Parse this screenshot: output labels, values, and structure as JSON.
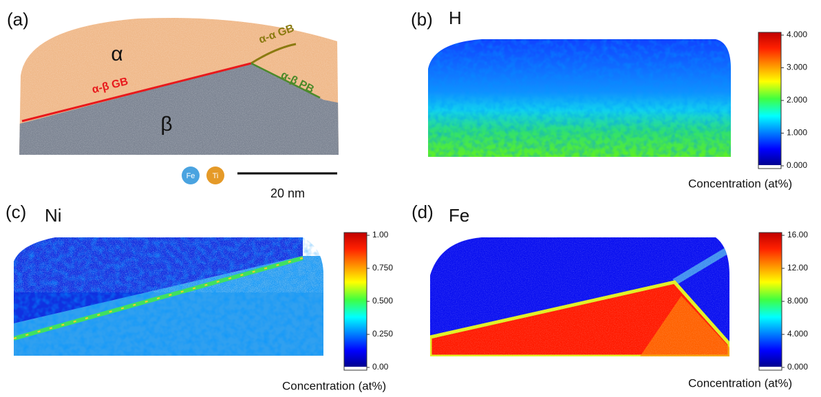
{
  "panel_a": {
    "label": "(a)",
    "alpha": "α",
    "beta": "β",
    "gb_ab": "α-β GB",
    "gb_aa": "α-α GB",
    "pb_ab": "α-β PB",
    "legend": [
      "Fe",
      "Ti"
    ],
    "scale_bar": "20 nm"
  },
  "panels": [
    {
      "label": "(b)",
      "element": "H",
      "colorbar_ticks": [
        "4.000",
        "3.000",
        "2.000",
        "1.000",
        "0.000"
      ],
      "colorbar_title": "Concentration (at%)"
    },
    {
      "label": "(c)",
      "element": "Ni",
      "colorbar_ticks": [
        "1.00",
        "0.750",
        "0.500",
        "0.250",
        "0.00"
      ],
      "colorbar_title": "Concentration (at%)"
    },
    {
      "label": "(d)",
      "element": "Fe",
      "colorbar_ticks": [
        "16.00",
        "12.00",
        "8.000",
        "4.000",
        "0.000"
      ],
      "colorbar_title": "Concentration (at%)"
    }
  ]
}
